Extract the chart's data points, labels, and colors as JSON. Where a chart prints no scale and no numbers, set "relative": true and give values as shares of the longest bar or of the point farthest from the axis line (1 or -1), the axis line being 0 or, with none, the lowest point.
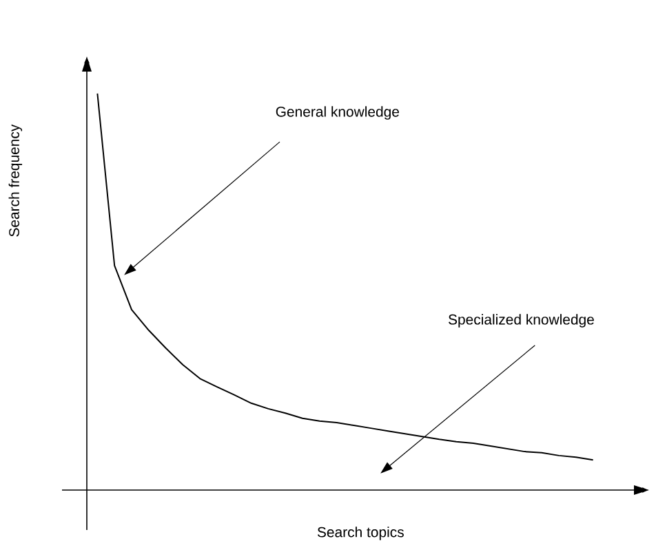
{
  "chart_data": {
    "type": "line",
    "relative": true,
    "xlabel": "Search topics",
    "ylabel": "Search frequency",
    "color": "#000000",
    "annotations": [
      "General knowledge",
      "Specialized knowledge"
    ],
    "categories": [
      null,
      null,
      null,
      null,
      null,
      null,
      null,
      null,
      null,
      null,
      null,
      null,
      null,
      null,
      null,
      null,
      null,
      null,
      null,
      null,
      null,
      null,
      null,
      null,
      null,
      null,
      null,
      null,
      null,
      null
    ],
    "values": [
      1,
      0.566,
      0.455,
      0.403,
      0.358,
      0.316,
      0.281,
      0.26,
      0.24,
      0.219,
      0.205,
      0.194,
      0.181,
      0.174,
      0.17,
      0.163,
      0.156,
      0.149,
      0.142,
      0.135,
      0.128,
      0.122,
      0.118,
      0.111,
      0.104,
      0.097,
      0.094,
      0.087,
      0.083,
      0.076
    ]
  }
}
